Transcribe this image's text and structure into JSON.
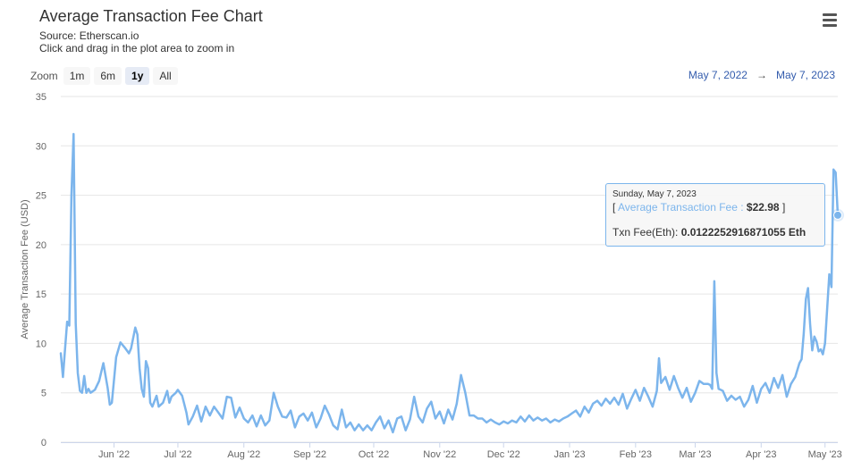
{
  "header": {
    "title": "Average Transaction Fee Chart",
    "source": "Source: Etherscan.io",
    "hint": "Click and drag in the plot area to zoom in"
  },
  "zoom": {
    "label": "Zoom",
    "buttons": [
      "1m",
      "6m",
      "1y",
      "All"
    ],
    "active": "1y"
  },
  "range": {
    "from": "May 7, 2022",
    "arrow": "→",
    "to": "May 7, 2023"
  },
  "tooltip": {
    "date": "Sunday, May 7, 2023",
    "bracket_open": "[",
    "series_label": "Average Transaction Fee :",
    "value": "$22.98",
    "bracket_close": "]",
    "eth_label": "Txn Fee(Eth):",
    "eth_value": "0.0122252916871055 Eth"
  },
  "colors": {
    "line": "#7cb5ec",
    "grid": "#e6e6e6",
    "axis_text": "#666666",
    "range_text": "#335cad"
  },
  "icons": {
    "menu": "hamburger-menu-icon"
  },
  "chart_data": {
    "type": "line",
    "title": "Average Transaction Fee Chart",
    "ylabel": "Average Transaction Fee (USD)",
    "xlabel": "",
    "ylim": [
      0,
      35
    ],
    "y_ticks": [
      "0",
      "5",
      "10",
      "15",
      "20",
      "25",
      "30",
      "35"
    ],
    "x_range": [
      "2022-05-07",
      "2023-05-07"
    ],
    "x_ticks": [
      {
        "label": "Jun '22",
        "date": "2022-06-01"
      },
      {
        "label": "Jul '22",
        "date": "2022-07-01"
      },
      {
        "label": "Aug '22",
        "date": "2022-08-01"
      },
      {
        "label": "Sep '22",
        "date": "2022-09-01"
      },
      {
        "label": "Oct '22",
        "date": "2022-10-01"
      },
      {
        "label": "Nov '22",
        "date": "2022-11-01"
      },
      {
        "label": "Dec '22",
        "date": "2022-12-01"
      },
      {
        "label": "Jan '23",
        "date": "2023-01-01"
      },
      {
        "label": "Feb '23",
        "date": "2023-02-01"
      },
      {
        "label": "Mar '23",
        "date": "2023-03-01"
      },
      {
        "label": "Apr '23",
        "date": "2023-04-01"
      },
      {
        "label": "May '23",
        "date": "2023-05-01"
      }
    ],
    "grid": true,
    "legend": "none",
    "series": [
      {
        "points": [
          [
            "2022-05-07",
            9.0
          ],
          [
            "2022-05-08",
            6.6
          ],
          [
            "2022-05-09",
            9.5
          ],
          [
            "2022-05-10",
            12.2
          ],
          [
            "2022-05-11",
            11.8
          ],
          [
            "2022-05-12",
            25.0
          ],
          [
            "2022-05-13",
            31.2
          ],
          [
            "2022-05-14",
            12.0
          ],
          [
            "2022-05-15",
            7.0
          ],
          [
            "2022-05-16",
            5.2
          ],
          [
            "2022-05-17",
            5.0
          ],
          [
            "2022-05-18",
            6.7
          ],
          [
            "2022-05-19",
            5.0
          ],
          [
            "2022-05-20",
            5.4
          ],
          [
            "2022-05-21",
            5.0
          ],
          [
            "2022-05-23",
            5.3
          ],
          [
            "2022-05-25",
            6.2
          ],
          [
            "2022-05-27",
            8.0
          ],
          [
            "2022-05-29",
            5.5
          ],
          [
            "2022-05-30",
            3.8
          ],
          [
            "2022-05-31",
            4.0
          ],
          [
            "2022-06-02",
            8.6
          ],
          [
            "2022-06-04",
            10.1
          ],
          [
            "2022-06-06",
            9.6
          ],
          [
            "2022-06-08",
            9.0
          ],
          [
            "2022-06-09",
            9.5
          ],
          [
            "2022-06-11",
            11.6
          ],
          [
            "2022-06-12",
            10.9
          ],
          [
            "2022-06-13",
            7.5
          ],
          [
            "2022-06-14",
            5.4
          ],
          [
            "2022-06-15",
            4.6
          ],
          [
            "2022-06-16",
            8.2
          ],
          [
            "2022-06-17",
            7.5
          ],
          [
            "2022-06-18",
            4.0
          ],
          [
            "2022-06-19",
            3.6
          ],
          [
            "2022-06-21",
            4.7
          ],
          [
            "2022-06-22",
            3.6
          ],
          [
            "2022-06-24",
            4.0
          ],
          [
            "2022-06-26",
            5.2
          ],
          [
            "2022-06-27",
            4.0
          ],
          [
            "2022-06-28",
            4.6
          ],
          [
            "2022-06-30",
            5.0
          ],
          [
            "2022-07-01",
            5.3
          ],
          [
            "2022-07-03",
            4.7
          ],
          [
            "2022-07-05",
            3.0
          ],
          [
            "2022-07-06",
            1.8
          ],
          [
            "2022-07-08",
            2.6
          ],
          [
            "2022-07-10",
            3.7
          ],
          [
            "2022-07-12",
            2.1
          ],
          [
            "2022-07-14",
            3.6
          ],
          [
            "2022-07-16",
            2.7
          ],
          [
            "2022-07-18",
            3.6
          ],
          [
            "2022-07-20",
            3.0
          ],
          [
            "2022-07-22",
            2.4
          ],
          [
            "2022-07-24",
            4.6
          ],
          [
            "2022-07-26",
            4.5
          ],
          [
            "2022-07-28",
            2.5
          ],
          [
            "2022-07-30",
            3.5
          ],
          [
            "2022-08-01",
            2.4
          ],
          [
            "2022-08-03",
            2.0
          ],
          [
            "2022-08-05",
            2.7
          ],
          [
            "2022-08-07",
            1.6
          ],
          [
            "2022-08-09",
            2.7
          ],
          [
            "2022-08-11",
            1.7
          ],
          [
            "2022-08-13",
            2.2
          ],
          [
            "2022-08-15",
            5.0
          ],
          [
            "2022-08-17",
            3.6
          ],
          [
            "2022-08-19",
            2.6
          ],
          [
            "2022-08-21",
            2.5
          ],
          [
            "2022-08-23",
            3.2
          ],
          [
            "2022-08-25",
            1.5
          ],
          [
            "2022-08-27",
            2.6
          ],
          [
            "2022-08-29",
            2.9
          ],
          [
            "2022-08-31",
            2.2
          ],
          [
            "2022-09-02",
            3.0
          ],
          [
            "2022-09-04",
            1.5
          ],
          [
            "2022-09-06",
            2.4
          ],
          [
            "2022-09-08",
            3.7
          ],
          [
            "2022-09-10",
            2.8
          ],
          [
            "2022-09-12",
            1.7
          ],
          [
            "2022-09-14",
            1.3
          ],
          [
            "2022-09-16",
            3.3
          ],
          [
            "2022-09-18",
            1.5
          ],
          [
            "2022-09-20",
            2.0
          ],
          [
            "2022-09-22",
            1.2
          ],
          [
            "2022-09-24",
            1.8
          ],
          [
            "2022-09-26",
            1.2
          ],
          [
            "2022-09-28",
            1.7
          ],
          [
            "2022-09-30",
            1.2
          ],
          [
            "2022-10-02",
            2.0
          ],
          [
            "2022-10-04",
            2.6
          ],
          [
            "2022-10-06",
            1.4
          ],
          [
            "2022-10-08",
            2.2
          ],
          [
            "2022-10-10",
            1.0
          ],
          [
            "2022-10-12",
            2.4
          ],
          [
            "2022-10-14",
            2.6
          ],
          [
            "2022-10-16",
            1.2
          ],
          [
            "2022-10-18",
            2.3
          ],
          [
            "2022-10-20",
            4.6
          ],
          [
            "2022-10-22",
            2.6
          ],
          [
            "2022-10-24",
            2.0
          ],
          [
            "2022-10-26",
            3.4
          ],
          [
            "2022-10-28",
            4.1
          ],
          [
            "2022-10-30",
            2.4
          ],
          [
            "2022-11-01",
            3.1
          ],
          [
            "2022-11-03",
            1.9
          ],
          [
            "2022-11-05",
            3.3
          ],
          [
            "2022-11-07",
            2.3
          ],
          [
            "2022-11-09",
            3.9
          ],
          [
            "2022-11-11",
            6.8
          ],
          [
            "2022-11-13",
            5.0
          ],
          [
            "2022-11-15",
            2.7
          ],
          [
            "2022-11-17",
            2.7
          ],
          [
            "2022-11-19",
            2.4
          ],
          [
            "2022-11-21",
            2.4
          ],
          [
            "2022-11-23",
            2.0
          ],
          [
            "2022-11-25",
            2.3
          ],
          [
            "2022-11-27",
            2.0
          ],
          [
            "2022-11-29",
            1.8
          ],
          [
            "2022-12-01",
            2.1
          ],
          [
            "2022-12-03",
            1.9
          ],
          [
            "2022-12-05",
            2.2
          ],
          [
            "2022-12-07",
            2.0
          ],
          [
            "2022-12-09",
            2.6
          ],
          [
            "2022-12-11",
            2.1
          ],
          [
            "2022-12-13",
            2.7
          ],
          [
            "2022-12-15",
            2.2
          ],
          [
            "2022-12-17",
            2.5
          ],
          [
            "2022-12-19",
            2.2
          ],
          [
            "2022-12-21",
            2.4
          ],
          [
            "2022-12-23",
            2.0
          ],
          [
            "2022-12-25",
            2.3
          ],
          [
            "2022-12-27",
            2.1
          ],
          [
            "2022-12-29",
            2.4
          ],
          [
            "2022-12-31",
            2.6
          ],
          [
            "2023-01-02",
            2.9
          ],
          [
            "2023-01-04",
            3.2
          ],
          [
            "2023-01-06",
            2.6
          ],
          [
            "2023-01-08",
            3.6
          ],
          [
            "2023-01-10",
            3.0
          ],
          [
            "2023-01-12",
            3.9
          ],
          [
            "2023-01-14",
            4.2
          ],
          [
            "2023-01-16",
            3.7
          ],
          [
            "2023-01-18",
            4.4
          ],
          [
            "2023-01-20",
            3.9
          ],
          [
            "2023-01-22",
            4.5
          ],
          [
            "2023-01-24",
            3.8
          ],
          [
            "2023-01-26",
            4.9
          ],
          [
            "2023-01-28",
            3.4
          ],
          [
            "2023-01-30",
            4.4
          ],
          [
            "2023-02-01",
            5.3
          ],
          [
            "2023-02-03",
            4.2
          ],
          [
            "2023-02-05",
            5.5
          ],
          [
            "2023-02-07",
            4.6
          ],
          [
            "2023-02-09",
            3.6
          ],
          [
            "2023-02-11",
            5.2
          ],
          [
            "2023-02-12",
            8.5
          ],
          [
            "2023-02-13",
            6.0
          ],
          [
            "2023-02-15",
            6.6
          ],
          [
            "2023-02-17",
            5.3
          ],
          [
            "2023-02-19",
            6.7
          ],
          [
            "2023-02-21",
            5.5
          ],
          [
            "2023-02-23",
            4.5
          ],
          [
            "2023-02-25",
            5.5
          ],
          [
            "2023-02-27",
            4.1
          ],
          [
            "2023-03-01",
            5.0
          ],
          [
            "2023-03-03",
            6.2
          ],
          [
            "2023-03-05",
            5.9
          ],
          [
            "2023-03-07",
            5.9
          ],
          [
            "2023-03-08",
            5.8
          ],
          [
            "2023-03-09",
            5.4
          ],
          [
            "2023-03-10",
            16.3
          ],
          [
            "2023-03-11",
            7.0
          ],
          [
            "2023-03-12",
            5.4
          ],
          [
            "2023-03-14",
            5.2
          ],
          [
            "2023-03-16",
            4.2
          ],
          [
            "2023-03-18",
            4.7
          ],
          [
            "2023-03-20",
            4.3
          ],
          [
            "2023-03-22",
            4.6
          ],
          [
            "2023-03-24",
            3.6
          ],
          [
            "2023-03-26",
            4.3
          ],
          [
            "2023-03-28",
            5.7
          ],
          [
            "2023-03-30",
            4.0
          ],
          [
            "2023-04-01",
            5.4
          ],
          [
            "2023-04-03",
            6.0
          ],
          [
            "2023-04-05",
            5.0
          ],
          [
            "2023-04-07",
            6.5
          ],
          [
            "2023-04-09",
            5.5
          ],
          [
            "2023-04-11",
            6.8
          ],
          [
            "2023-04-13",
            4.6
          ],
          [
            "2023-04-15",
            5.9
          ],
          [
            "2023-04-17",
            6.6
          ],
          [
            "2023-04-19",
            8.0
          ],
          [
            "2023-04-20",
            8.4
          ],
          [
            "2023-04-21",
            11.0
          ],
          [
            "2023-04-22",
            14.5
          ],
          [
            "2023-04-23",
            15.6
          ],
          [
            "2023-04-24",
            12.0
          ],
          [
            "2023-04-25",
            9.3
          ],
          [
            "2023-04-26",
            10.7
          ],
          [
            "2023-04-27",
            10.2
          ],
          [
            "2023-04-28",
            9.2
          ],
          [
            "2023-04-29",
            9.4
          ],
          [
            "2023-04-30",
            8.9
          ],
          [
            "2023-05-01",
            10.0
          ],
          [
            "2023-05-02",
            13.5
          ],
          [
            "2023-05-03",
            17.0
          ],
          [
            "2023-05-04",
            15.7
          ],
          [
            "2023-05-05",
            27.6
          ],
          [
            "2023-05-06",
            27.3
          ],
          [
            "2023-05-07",
            22.98
          ]
        ]
      }
    ]
  }
}
